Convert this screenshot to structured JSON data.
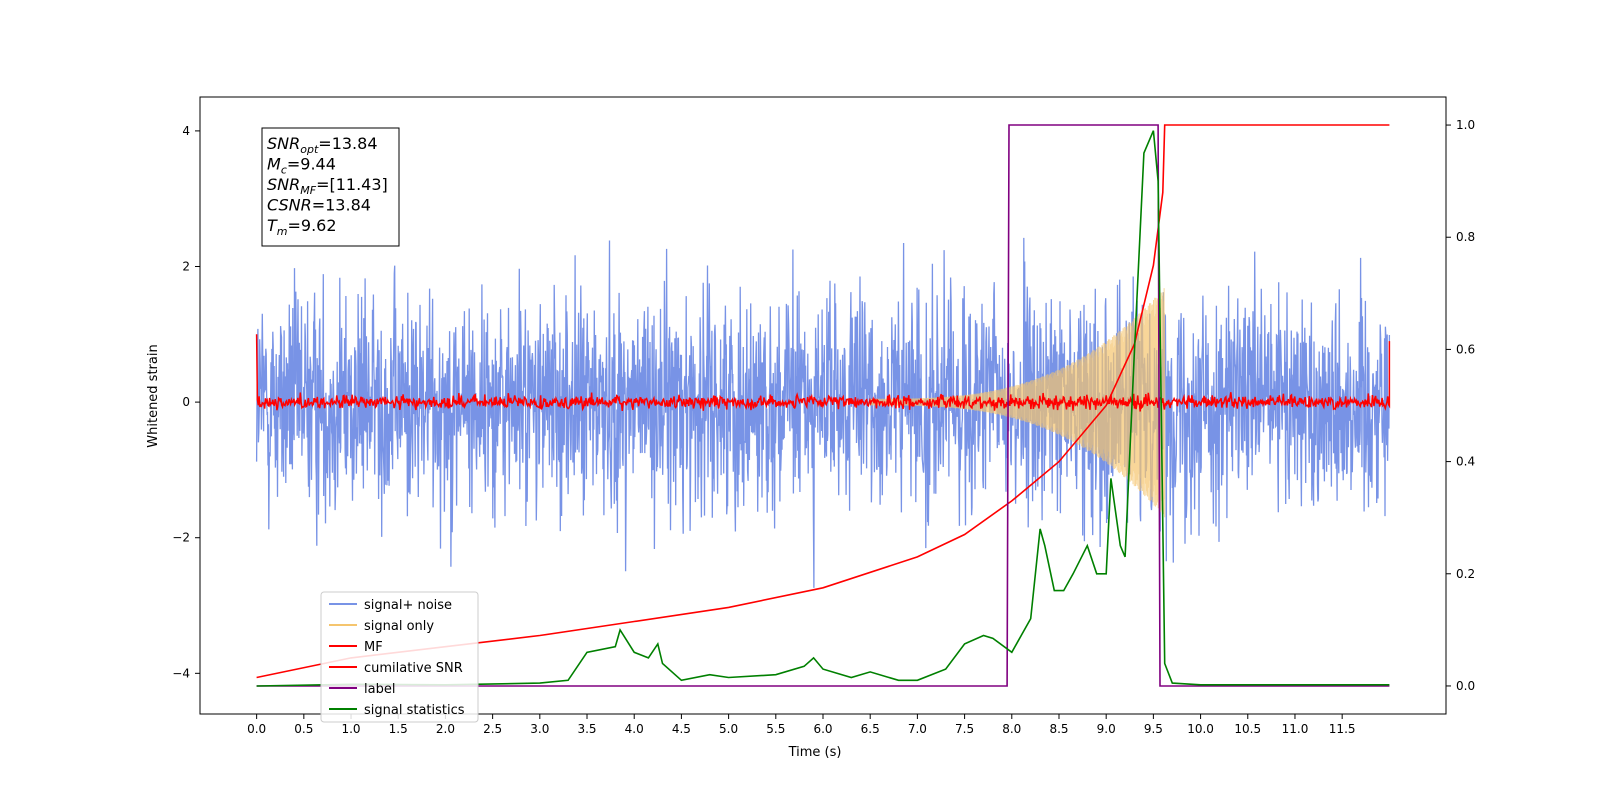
{
  "chart_data": {
    "type": "line",
    "xlabel": "Time (s)",
    "ylabel": "Whitened strain",
    "xlim": [
      -0.6,
      12.6
    ],
    "ylim": [
      -4.6,
      4.5
    ],
    "y2lim": [
      -0.05,
      1.05
    ],
    "x_ticks": [
      "0.0",
      "0.5",
      "1.0",
      "1.5",
      "2.0",
      "2.5",
      "3.0",
      "3.5",
      "4.0",
      "4.5",
      "5.0",
      "5.5",
      "6.0",
      "6.5",
      "7.0",
      "7.5",
      "8.0",
      "8.5",
      "9.0",
      "9.5",
      "10.0",
      "10.5",
      "11.0",
      "11.5"
    ],
    "y_ticks": [
      "−4",
      "−2",
      "0",
      "2",
      "4"
    ],
    "y2_ticks": [
      "0.0",
      "0.2",
      "0.4",
      "0.6",
      "0.8",
      "1.0"
    ],
    "legend_position": "lower-left",
    "annotation": [
      {
        "base": "SNR",
        "sub": "opt",
        "value": "=13.84"
      },
      {
        "base": "M",
        "sub": "c",
        "value": "=9.44"
      },
      {
        "base": "SNR",
        "sub": "MF",
        "value": "=[11.43]"
      },
      {
        "base": "CSNR",
        "sub": "",
        "value": "=13.84"
      },
      {
        "base": "T",
        "sub": "m",
        "value": "=9.62"
      }
    ],
    "series": [
      {
        "name": "signal+ noise",
        "color": "#7893e6",
        "axis": "left",
        "description": "noise band, amplitude ~±3.5 around 0, 0.0–12.0 s"
      },
      {
        "name": "signal only",
        "color": "#f5c56e",
        "axis": "left",
        "chirp": {
          "start": 6.5,
          "end": 9.62,
          "amp_start": 0.05,
          "amp_end": 1.7
        }
      },
      {
        "name": "MF",
        "color": "#ff0000",
        "axis": "left",
        "description": "noisy ~±0.15 around 0"
      },
      {
        "name": "cumilative SNR",
        "color": "#ff0000",
        "axis": "right",
        "x": [
          0.0,
          1.0,
          2.0,
          3.0,
          4.0,
          5.0,
          6.0,
          7.0,
          7.5,
          8.0,
          8.5,
          9.0,
          9.3,
          9.5,
          9.6,
          9.62,
          12.0
        ],
        "y": [
          0.015,
          0.05,
          0.07,
          0.09,
          0.115,
          0.14,
          0.175,
          0.23,
          0.27,
          0.33,
          0.4,
          0.5,
          0.61,
          0.75,
          0.88,
          1.0,
          1.0
        ]
      },
      {
        "name": "label",
        "color": "#800080",
        "axis": "right",
        "x": [
          0.0,
          7.95,
          7.97,
          9.55,
          9.57,
          12.0
        ],
        "y": [
          0.0,
          0.0,
          1.0,
          1.0,
          0.0,
          0.0
        ]
      },
      {
        "name": "signal statistics",
        "color": "#008000",
        "axis": "right",
        "x": [
          0.0,
          1.0,
          2.0,
          3.0,
          3.3,
          3.5,
          3.8,
          3.85,
          4.0,
          4.15,
          4.25,
          4.3,
          4.5,
          4.8,
          5.0,
          5.5,
          5.8,
          5.9,
          6.0,
          6.3,
          6.5,
          6.8,
          7.0,
          7.3,
          7.5,
          7.7,
          7.8,
          8.0,
          8.2,
          8.3,
          8.35,
          8.45,
          8.55,
          8.65,
          8.8,
          8.9,
          9.0,
          9.05,
          9.15,
          9.2,
          9.3,
          9.4,
          9.5,
          9.55,
          9.62,
          9.7,
          10.0,
          11.0,
          12.0
        ],
        "y": [
          0.0,
          0.003,
          0.002,
          0.005,
          0.01,
          0.06,
          0.07,
          0.1,
          0.06,
          0.05,
          0.075,
          0.04,
          0.01,
          0.02,
          0.015,
          0.02,
          0.035,
          0.05,
          0.03,
          0.015,
          0.025,
          0.01,
          0.01,
          0.03,
          0.075,
          0.09,
          0.085,
          0.06,
          0.12,
          0.28,
          0.25,
          0.17,
          0.17,
          0.2,
          0.25,
          0.2,
          0.2,
          0.37,
          0.25,
          0.23,
          0.6,
          0.95,
          0.99,
          0.9,
          0.04,
          0.005,
          0.002,
          0.002,
          0.002
        ]
      }
    ]
  }
}
